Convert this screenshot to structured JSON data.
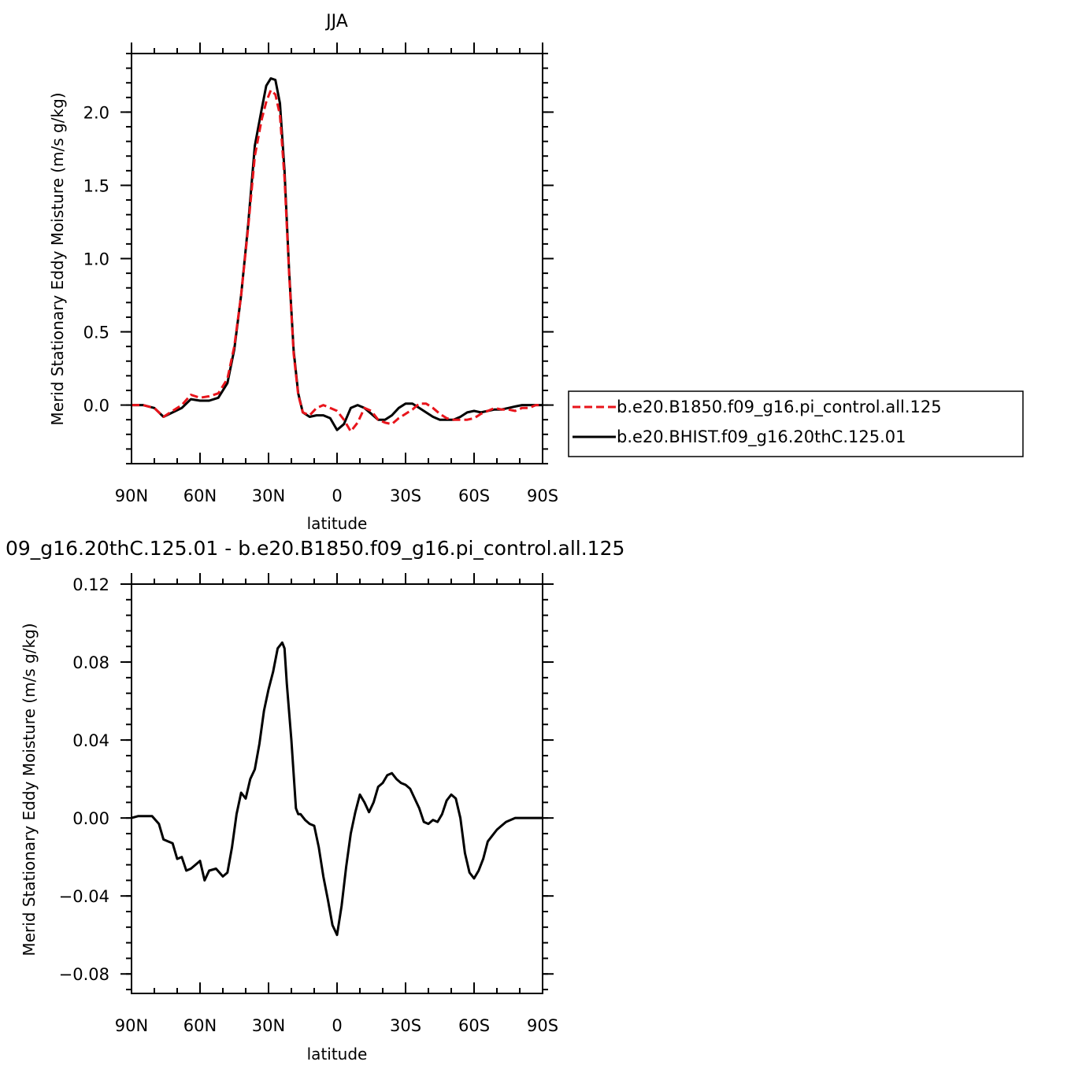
{
  "colors": {
    "control": "#e8141b",
    "hist": "#000000"
  },
  "chart_data": [
    {
      "type": "line",
      "title": "JJA",
      "xlabel": "latitude",
      "ylabel": "Merid Stationary Eddy Moisture (m/s g/kg)",
      "xlim": [
        90,
        -90
      ],
      "ylim": [
        -0.4,
        2.4
      ],
      "xticks": [
        90,
        60,
        30,
        0,
        -30,
        -60,
        -90
      ],
      "xticklabels": [
        "90N",
        "60N",
        "30N",
        "0",
        "30S",
        "60S",
        "90S"
      ],
      "yticks": [
        0,
        0.5,
        1,
        1.5,
        2
      ],
      "yticklabels": [
        "0.0",
        "0.5",
        "1.0",
        "1.5",
        "2.0"
      ],
      "grid": false,
      "legend_position": "right",
      "series": [
        {
          "name": "b.e20.B1850.f09_g16.pi_control.all.125",
          "style": "dashed",
          "color": "#e8141b",
          "x": [
            90,
            85,
            80,
            76,
            72,
            68,
            64,
            60,
            56,
            52,
            48,
            45,
            42,
            39,
            36,
            33,
            31,
            29,
            27,
            25,
            23,
            21,
            19,
            17,
            15,
            12,
            9,
            6,
            3,
            0,
            -3,
            -6,
            -9,
            -12,
            -15,
            -18,
            -21,
            -24,
            -27,
            -30,
            -33,
            -36,
            -39,
            -42,
            -45,
            -48,
            -51,
            -54,
            -57,
            -60,
            -63,
            -66,
            -69,
            -72,
            -75,
            -78,
            -81,
            -84,
            -87,
            -90
          ],
          "y": [
            0.0,
            0.0,
            -0.02,
            -0.08,
            -0.04,
            0.0,
            0.07,
            0.05,
            0.06,
            0.08,
            0.18,
            0.4,
            0.75,
            1.2,
            1.7,
            1.95,
            2.07,
            2.15,
            2.12,
            1.98,
            1.55,
            0.9,
            0.35,
            0.07,
            -0.05,
            -0.07,
            -0.02,
            0.0,
            -0.02,
            -0.04,
            -0.1,
            -0.18,
            -0.12,
            -0.02,
            -0.04,
            -0.1,
            -0.12,
            -0.13,
            -0.09,
            -0.06,
            -0.03,
            0.01,
            0.01,
            -0.02,
            -0.06,
            -0.09,
            -0.1,
            -0.1,
            -0.1,
            -0.09,
            -0.06,
            -0.04,
            -0.02,
            -0.03,
            -0.03,
            -0.04,
            -0.02,
            -0.02,
            0.0,
            0.0
          ]
        },
        {
          "name": "b.e20.BHIST.f09_g16.20thC.125.01",
          "style": "solid",
          "color": "#000000",
          "x": [
            90,
            85,
            80,
            76,
            72,
            68,
            64,
            60,
            56,
            52,
            48,
            45,
            42,
            39,
            36,
            33,
            31,
            29,
            27,
            25,
            23,
            21,
            19,
            17,
            15,
            12,
            9,
            6,
            3,
            0,
            -3,
            -6,
            -9,
            -12,
            -15,
            -18,
            -21,
            -24,
            -27,
            -30,
            -33,
            -36,
            -39,
            -42,
            -45,
            -48,
            -51,
            -54,
            -57,
            -60,
            -63,
            -66,
            -69,
            -72,
            -75,
            -78,
            -81,
            -84,
            -87,
            -90
          ],
          "y": [
            0.0,
            0.0,
            -0.02,
            -0.08,
            -0.05,
            -0.02,
            0.04,
            0.03,
            0.03,
            0.05,
            0.15,
            0.38,
            0.75,
            1.22,
            1.77,
            2.02,
            2.18,
            2.23,
            2.22,
            2.06,
            1.6,
            0.92,
            0.37,
            0.08,
            -0.05,
            -0.08,
            -0.07,
            -0.07,
            -0.09,
            -0.17,
            -0.13,
            -0.02,
            0.0,
            -0.02,
            -0.06,
            -0.1,
            -0.1,
            -0.07,
            -0.02,
            0.01,
            0.01,
            -0.02,
            -0.05,
            -0.08,
            -0.1,
            -0.1,
            -0.1,
            -0.08,
            -0.05,
            -0.04,
            -0.05,
            -0.04,
            -0.03,
            -0.03,
            -0.02,
            -0.01,
            0.0,
            0.0,
            0.0,
            0.0
          ]
        }
      ]
    },
    {
      "type": "line",
      "title": "09_g16.20thC.125.01 - b.e20.B1850.f09_g16.pi_control.all.125",
      "xlabel": "latitude",
      "ylabel": "Merid Stationary Eddy Moisture (m/s g/kg)",
      "xlim": [
        90,
        -90
      ],
      "ylim": [
        -0.09,
        0.12
      ],
      "xticks": [
        90,
        60,
        30,
        0,
        -30,
        -60,
        -90
      ],
      "xticklabels": [
        "90N",
        "60N",
        "30N",
        "0",
        "30S",
        "60S",
        "90S"
      ],
      "yticks": [
        -0.08,
        -0.04,
        0,
        0.04,
        0.08,
        0.12
      ],
      "yticklabels": [
        "−0.08",
        "−0.04",
        "0.00",
        "0.04",
        "0.08",
        "0.12"
      ],
      "grid": false,
      "series": [
        {
          "style": "solid",
          "color": "#000000",
          "x": [
            90,
            87,
            84,
            81,
            78,
            76,
            74,
            72,
            70,
            68,
            66,
            64,
            62,
            60,
            58,
            56,
            53,
            50,
            48,
            46,
            44,
            42,
            40,
            38,
            36,
            34,
            32,
            30,
            28,
            26,
            24,
            23,
            22,
            20,
            18,
            17,
            16,
            14,
            12,
            10,
            8,
            6,
            4,
            2,
            0,
            -2,
            -4,
            -6,
            -8,
            -10,
            -12,
            -14,
            -16,
            -18,
            -20,
            -22,
            -24,
            -26,
            -28,
            -30,
            -32,
            -34,
            -36,
            -38,
            -40,
            -42,
            -44,
            -46,
            -48,
            -50,
            -52,
            -54,
            -56,
            -58,
            -60,
            -62,
            -64,
            -66,
            -68,
            -70,
            -72,
            -74,
            -76,
            -78,
            -80,
            -83,
            -86,
            -88,
            -90
          ],
          "y": [
            0.0,
            0.001,
            0.001,
            0.001,
            -0.003,
            -0.011,
            -0.012,
            -0.013,
            -0.021,
            -0.02,
            -0.027,
            -0.026,
            -0.024,
            -0.022,
            -0.032,
            -0.027,
            -0.026,
            -0.03,
            -0.028,
            -0.015,
            0.002,
            0.013,
            0.01,
            0.02,
            0.025,
            0.038,
            0.055,
            0.066,
            0.075,
            0.087,
            0.09,
            0.087,
            0.069,
            0.04,
            0.005,
            0.002,
            0.002,
            -0.001,
            -0.003,
            -0.004,
            -0.015,
            -0.03,
            -0.042,
            -0.055,
            -0.06,
            -0.045,
            -0.025,
            -0.008,
            0.003,
            0.012,
            0.008,
            0.003,
            0.008,
            0.016,
            0.018,
            0.022,
            0.023,
            0.02,
            0.018,
            0.017,
            0.015,
            0.01,
            0.005,
            -0.002,
            -0.003,
            -0.001,
            -0.002,
            0.002,
            0.009,
            0.012,
            0.01,
            0.0,
            -0.018,
            -0.028,
            -0.031,
            -0.027,
            -0.021,
            -0.012,
            -0.009,
            -0.006,
            -0.004,
            -0.002,
            -0.001,
            0.0,
            0.0,
            0.0,
            0.0,
            0.0,
            0.0
          ]
        }
      ]
    }
  ]
}
